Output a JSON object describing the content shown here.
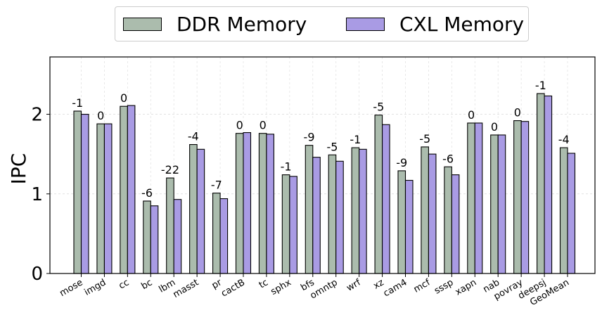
{
  "chart_data": {
    "type": "bar",
    "title": "",
    "xlabel": "",
    "ylabel": "IPC",
    "ylim": [
      0,
      2.72
    ],
    "yticks": [
      "0",
      "1",
      "2"
    ],
    "grid": true,
    "legend_position": "top-center",
    "categories": [
      "mose",
      "imgd",
      "cc",
      "bc",
      "lbm",
      "masst",
      "pr",
      "cactB",
      "tc",
      "sphx",
      "bfs",
      "omntp",
      "wrf",
      "xz",
      "cam4",
      "mcf",
      "sssp",
      "xapn",
      "nab",
      "povray",
      "deepsj",
      "GeoMean"
    ],
    "series": [
      {
        "name": "DDR Memory",
        "color": "#abbcad",
        "values": [
          2.04,
          1.88,
          2.1,
          0.91,
          1.2,
          1.62,
          1.01,
          1.76,
          1.76,
          1.24,
          1.61,
          1.49,
          1.58,
          1.99,
          1.29,
          1.59,
          1.34,
          1.89,
          1.74,
          1.92,
          2.26,
          1.58
        ]
      },
      {
        "name": "CXL Memory",
        "color": "#a99be4",
        "values": [
          2.0,
          1.88,
          2.11,
          0.85,
          0.93,
          1.56,
          0.94,
          1.77,
          1.75,
          1.22,
          1.46,
          1.41,
          1.56,
          1.87,
          1.17,
          1.5,
          1.24,
          1.89,
          1.74,
          1.91,
          2.23,
          1.51
        ]
      }
    ],
    "annotations": [
      "-1",
      "0",
      "0",
      "-6",
      "-22",
      "-4",
      "-7",
      "0",
      "0",
      "-1",
      "-9",
      "-5",
      "-1",
      "-5",
      "-9",
      "-5",
      "-6",
      "0",
      "0",
      "0",
      "-1",
      "-4"
    ]
  }
}
